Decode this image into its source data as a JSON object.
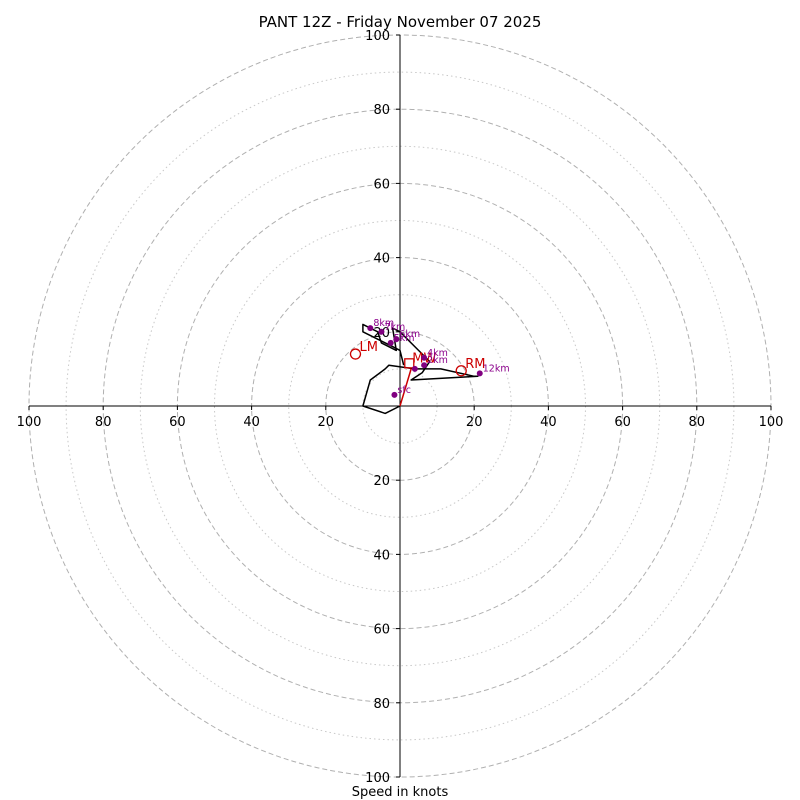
{
  "chart_data": {
    "type": "scatter",
    "subtype": "hodograph",
    "title": "PANT 12Z - Friday November 07 2025",
    "xlabel": "Speed in knots",
    "ylabel": "",
    "xlim": [
      -100,
      100
    ],
    "ylim": [
      -100,
      100
    ],
    "major_rings": [
      20,
      40,
      60,
      80,
      100
    ],
    "minor_rings": [
      10,
      30,
      50,
      70,
      90
    ],
    "x_ticks": [
      {
        "value": -100,
        "label": "100"
      },
      {
        "value": -80,
        "label": "80"
      },
      {
        "value": -60,
        "label": "60"
      },
      {
        "value": -40,
        "label": "40"
      },
      {
        "value": -20,
        "label": "20"
      },
      {
        "value": 20,
        "label": "20"
      },
      {
        "value": 40,
        "label": "40"
      },
      {
        "value": 60,
        "label": "60"
      },
      {
        "value": 80,
        "label": "80"
      },
      {
        "value": 100,
        "label": "100"
      }
    ],
    "y_ticks": [
      {
        "value": 100,
        "label": "100"
      },
      {
        "value": 80,
        "label": "80"
      },
      {
        "value": 60,
        "label": "60"
      },
      {
        "value": 40,
        "label": "40"
      },
      {
        "value": 20,
        "label": "20"
      },
      {
        "value": -20,
        "label": "20"
      },
      {
        "value": -40,
        "label": "40"
      },
      {
        "value": -60,
        "label": "60"
      },
      {
        "value": -80,
        "label": "80"
      },
      {
        "value": -100,
        "label": "100"
      }
    ],
    "series": [
      {
        "kind": "wind-trace",
        "color": "#000000",
        "u": [
          0,
          -4,
          -10,
          -8,
          -4,
          -3,
          4,
          11,
          20,
          21,
          3,
          6,
          8,
          4,
          0,
          -2,
          -1,
          -5,
          -6,
          -10,
          -10,
          -6,
          -2,
          0,
          1
        ],
        "v": [
          0,
          -2,
          0,
          7,
          10,
          11,
          10,
          10,
          8,
          8,
          7,
          9,
          12,
          16,
          20,
          21,
          15,
          17,
          20,
          22,
          20,
          18,
          16,
          15,
          11
        ]
      },
      {
        "kind": "height-markers",
        "color": "#800080",
        "points": [
          {
            "u": -1.5,
            "v": 3,
            "label": "sfc"
          },
          {
            "u": 4,
            "v": 10,
            "label": ""
          },
          {
            "u": 6.5,
            "v": 11,
            "label": "2km"
          },
          {
            "u": 6.5,
            "v": 13,
            "label": "4km"
          },
          {
            "u": -2.5,
            "v": 17,
            "label": "5km"
          },
          {
            "u": -1,
            "v": 18,
            "label": "6km"
          },
          {
            "u": -5,
            "v": 20,
            "label": "7km"
          },
          {
            "u": -8,
            "v": 21,
            "label": "8km"
          },
          {
            "u": 21.5,
            "v": 8.8,
            "label": "12km"
          }
        ]
      }
    ],
    "storm_motion": {
      "color": "#cc0000",
      "right_mover": {
        "u": 16.5,
        "v": 9.5,
        "label": "RM"
      },
      "left_mover": {
        "u": -12,
        "v": 14,
        "label": "LM"
      },
      "mean_wind": {
        "u": 2.5,
        "v": 11.5,
        "label": "MW"
      },
      "shear_vector": {
        "from": [
          0,
          0
        ],
        "to": [
          3,
          10
        ]
      }
    },
    "colors": {
      "trace": "#000000",
      "heights": "#800080",
      "storm": "#cc0000",
      "rings": "#b0b0b0"
    }
  }
}
